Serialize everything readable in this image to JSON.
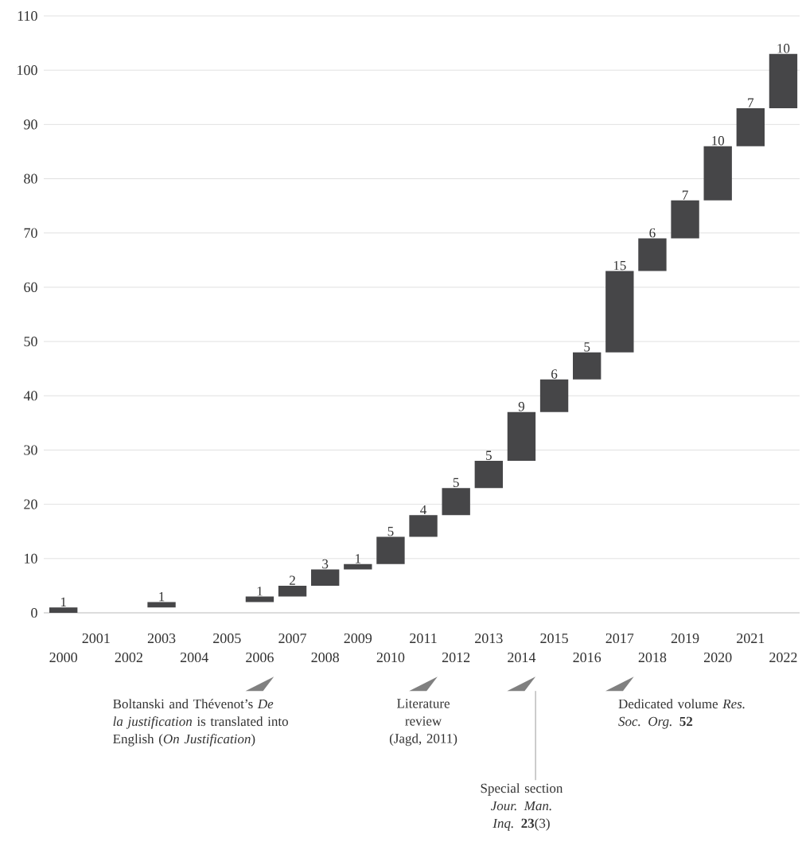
{
  "chart_data": {
    "type": "bar",
    "categories": [
      "2000",
      "2001",
      "2002",
      "2003",
      "2004",
      "2005",
      "2006",
      "2007",
      "2008",
      "2009",
      "2010",
      "2011",
      "2012",
      "2013",
      "2014",
      "2015",
      "2016",
      "2017",
      "2018",
      "2019",
      "2020",
      "2021",
      "2022"
    ],
    "values": [
      1,
      null,
      null,
      1,
      null,
      null,
      1,
      2,
      3,
      1,
      5,
      4,
      5,
      5,
      9,
      6,
      5,
      15,
      6,
      7,
      10,
      7,
      10
    ],
    "base": [
      0,
      null,
      null,
      1,
      null,
      null,
      2,
      3,
      5,
      8,
      9,
      14,
      18,
      23,
      28,
      37,
      43,
      48,
      63,
      69,
      76,
      86,
      93
    ],
    "color": "#464648",
    "ylim": [
      0,
      110
    ],
    "yticks": [
      0,
      10,
      20,
      30,
      40,
      50,
      60,
      70,
      80,
      90,
      100,
      110
    ],
    "grid": "y",
    "data_labels": true,
    "annotations": [
      "Boltanski and Thévenot’s *De la justification* is translated into English (*On Justification*)",
      "Literature review (Jagd, 2011)",
      "Special section *Jour. Man. Inq.* **23**(3)",
      "Dedicated volume *Res. Soc. Org.* **52**"
    ]
  }
}
